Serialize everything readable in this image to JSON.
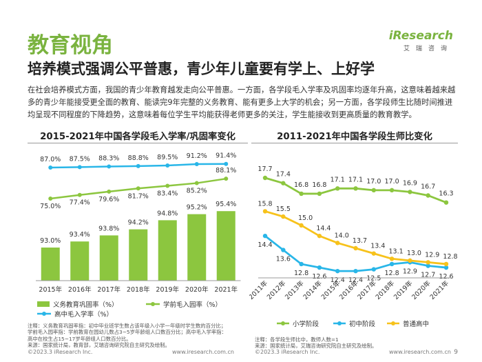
{
  "header": {
    "title": "教育视角",
    "subtitle": "培养模式强调公平普惠，青少年儿童要有学上、上好学",
    "logo": {
      "word": "iResearch",
      "sub": "艾瑞咨询"
    }
  },
  "body_text": "在社会培养模式方面，我国的青少年教育越发走向公平普惠。一方面，各学段毛入学率及巩固率均逐年升高，这意味着越来越多的青少年能接受更全面的教育、能读完9年完整的义务教育、能有更多上大学的机会；另一方面，各学段师生比随时间推进均呈现不同程度的下降趋势，这意味着每位学生平均能获得老师更多的关注，学生能接收到更高质量的教育教学。",
  "left_chart_title": "2015-2021年中国各学段毛入学率/巩固率变化",
  "right_chart_title": "2011-2021年中国各学段生师比变化",
  "colors": {
    "accent": "#7ab33f",
    "bar": "#8cc63f",
    "higher": "#29b6e8",
    "primary": "#8cc63f",
    "junior": "#29b6e8",
    "senior": "#f7c21b"
  },
  "chart_data": [
    {
      "type": "bar",
      "categories": [
        "2015年",
        "2016年",
        "2017年",
        "2018年",
        "2019年",
        "2020年",
        "2021年"
      ],
      "series": [
        {
          "name": "义务教育巩固率（%）",
          "type": "bar",
          "values": [
            93.0,
            93.4,
            93.8,
            94.2,
            94.8,
            95.2,
            95.4
          ],
          "labels": [
            "93.0%",
            "93.4%",
            "93.8%",
            "94.2%",
            "94.8%",
            "95.2%",
            "95.4%"
          ]
        },
        {
          "name": "学前毛入园率（%）",
          "type": "line",
          "values": [
            75.0,
            77.4,
            79.6,
            81.7,
            83.4,
            85.2,
            88.1
          ],
          "labels": [
            "75.0%",
            "77.4%",
            "79.6%",
            "81.7%",
            "83.4%",
            "85.2%",
            "88.1%"
          ]
        },
        {
          "name": "高中毛入学率（%）",
          "type": "line",
          "values": [
            87.0,
            87.5,
            88.3,
            88.8,
            89.5,
            91.2,
            91.4
          ],
          "labels": [
            "87.0%",
            "87.5%",
            "88.3%",
            "88.8%",
            "89.5%",
            "91.2%",
            "91.4%"
          ]
        }
      ],
      "notes": [
        "注释：义务教育巩固率指：初中毕业班学生数占该年级入小学一年级时学生数的百分比；",
        "学前毛入园率指：学前教育在园幼儿数占3~5岁年龄组人口数百分比；高中毛入学率指：",
        "高中在校生占15~17岁年龄组人口数百分比。",
        "来源：国家统计局，教育部，艾瑞咨询研究院自主研究及绘制。"
      ]
    },
    {
      "type": "line",
      "categories": [
        "2011年",
        "2012年",
        "2013年",
        "2014年",
        "2015年",
        "2016年",
        "2017年",
        "2018年",
        "2019年",
        "2020年",
        "2021年"
      ],
      "series": [
        {
          "name": "小学阶段",
          "values": [
            17.7,
            17.4,
            16.8,
            16.8,
            17.1,
            17.1,
            17.0,
            17.0,
            16.9,
            16.7,
            16.3
          ]
        },
        {
          "name": "初中阶段",
          "values": [
            14.4,
            13.6,
            12.8,
            12.6,
            12.4,
            12.4,
            12.5,
            12.8,
            12.9,
            12.7,
            12.6
          ]
        },
        {
          "name": "普通高中",
          "values": [
            15.8,
            15.5,
            15.0,
            14.4,
            14.0,
            13.7,
            13.4,
            13.1,
            13.0,
            12.9,
            12.8
          ]
        }
      ],
      "notes": [
        "注释：各学段生师比中，教师人数=1",
        "来源：国家统计局，艾瑞咨询研究院自主研究及绘制。"
      ]
    }
  ],
  "footer": {
    "left_copyright": "©2023.3 iResearch Inc.",
    "left_url": "www.iresearch.com.cn",
    "right_copyright": "©2023.3 iResearch Inc.",
    "right_url": "www.iresearch.com.cn",
    "page": "9"
  }
}
